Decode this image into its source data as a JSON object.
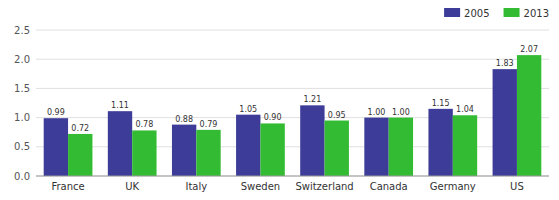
{
  "chart_data": {
    "type": "bar",
    "categories": [
      "France",
      "UK",
      "Italy",
      "Sweden",
      "Switzerland",
      "Canada",
      "Germany",
      "US"
    ],
    "series": [
      {
        "name": "2005",
        "color": "#3d3d99",
        "values": [
          0.99,
          1.11,
          0.88,
          1.05,
          1.21,
          1.0,
          1.15,
          1.83
        ],
        "value_labels": [
          "0.99",
          "1.11",
          "0.88",
          "1.05",
          "1.21",
          "1.00",
          "1.15",
          "1.83"
        ]
      },
      {
        "name": "2013",
        "color": "#33bb33",
        "values": [
          0.72,
          0.78,
          0.79,
          0.9,
          0.95,
          1.0,
          1.04,
          2.07
        ],
        "value_labels": [
          "0.72",
          "0.78",
          "0.79",
          "0.90",
          "0.95",
          "1.00",
          "1.04",
          "2.07"
        ]
      }
    ],
    "ylim": [
      0.0,
      2.5
    ],
    "yticks": [
      {
        "value": 0.0,
        "label": "0.0"
      },
      0.5,
      {
        "value": 1.0,
        "label": "1.0"
      },
      1.5,
      {
        "value": 2.0,
        "label": "2.0"
      },
      2.5
    ],
    "grid": true,
    "legend": "upper right",
    "data_labels": true
  }
}
